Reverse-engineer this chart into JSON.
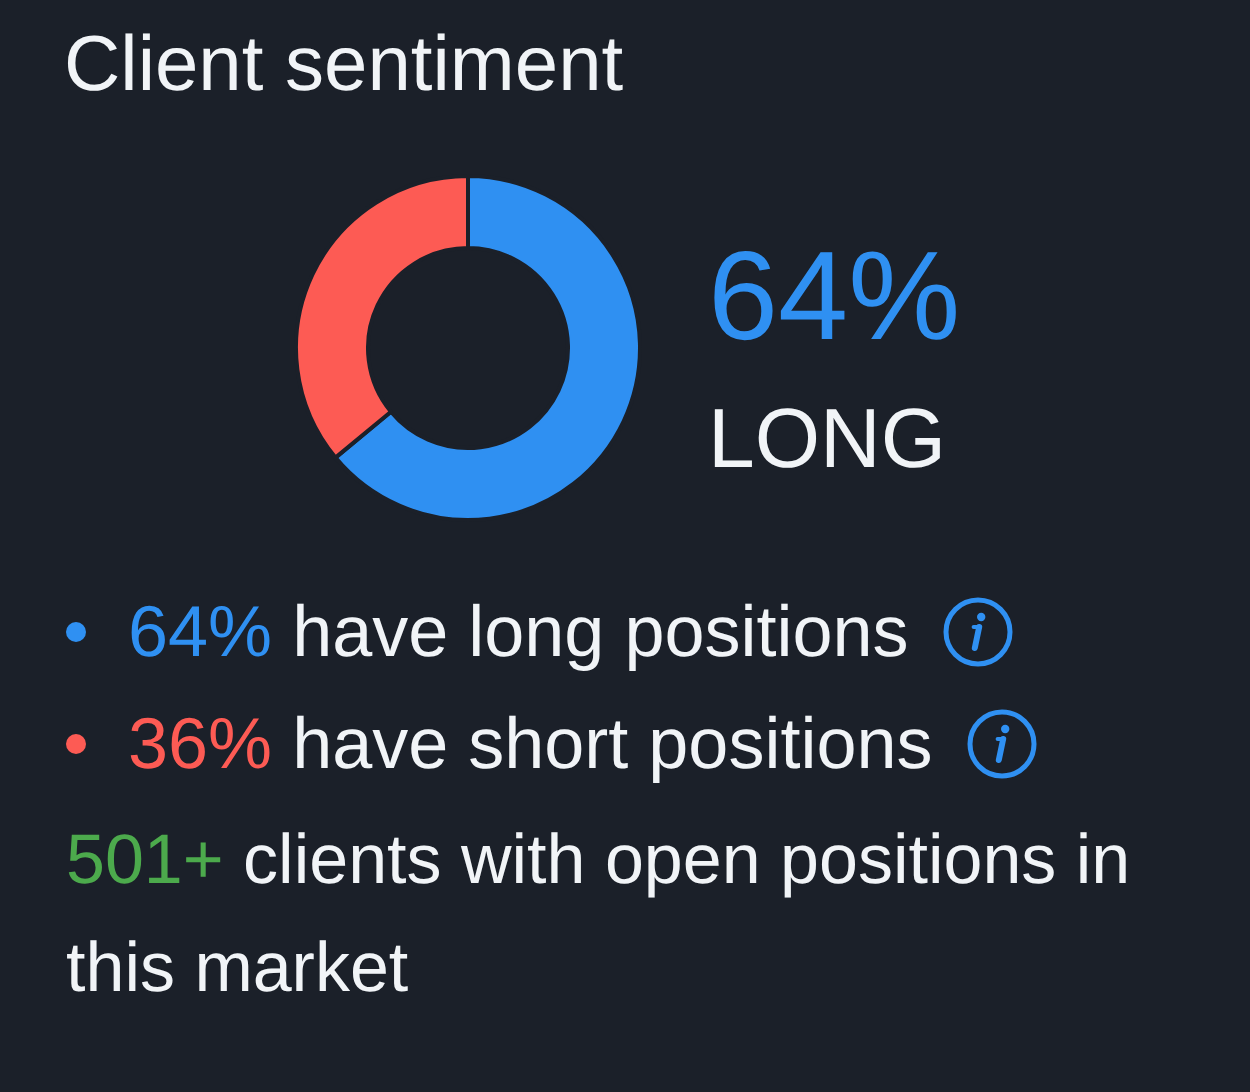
{
  "chart_data": {
    "type": "donut",
    "title": "Client sentiment",
    "categories": [
      "have long positions",
      "have short positions"
    ],
    "values": [
      64,
      36
    ],
    "colors": [
      "#2f90f2",
      "#fd5b54"
    ],
    "value_labels": [
      "64%",
      "36%"
    ],
    "annotations": [
      "64%",
      "LONG",
      "501+ clients with open positions in this market"
    ]
  }
}
